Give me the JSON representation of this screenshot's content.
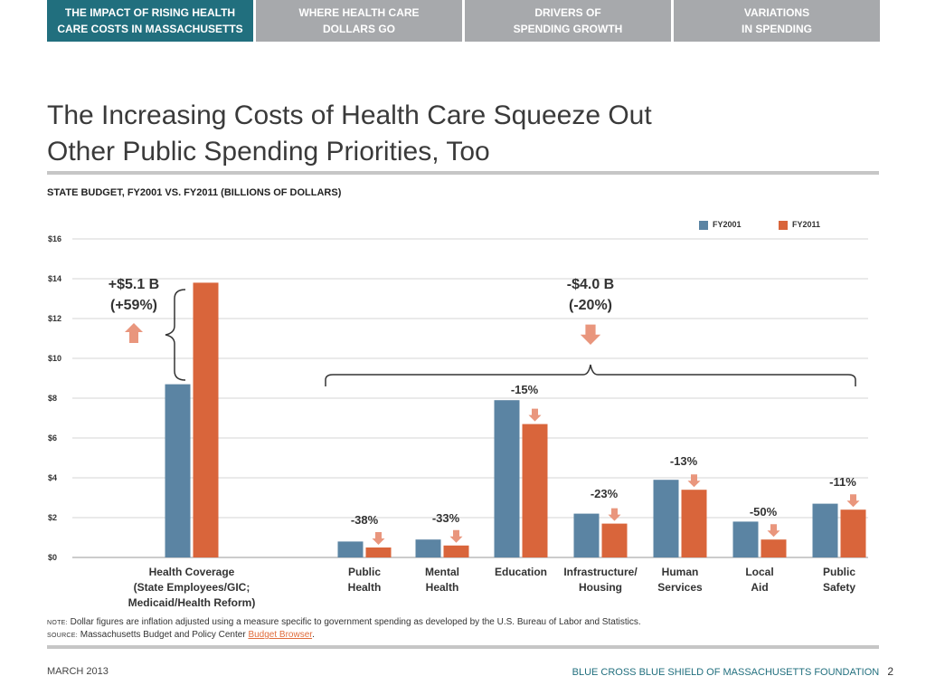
{
  "nav": {
    "tabs": [
      {
        "line1": "THE IMPACT OF RISING HEALTH",
        "line2": "CARE COSTS IN MASSACHUSETTS",
        "active": true
      },
      {
        "line1": "WHERE HEALTH CARE",
        "line2": "DOLLARS GO",
        "active": false
      },
      {
        "line1": "DRIVERS OF",
        "line2": "SPENDING GROWTH",
        "active": false
      },
      {
        "line1": "VARIATIONS",
        "line2": "IN SPENDING",
        "active": false
      }
    ]
  },
  "title": {
    "line1": "The Increasing Costs of Health Care Squeeze Out",
    "line2": "Other Public Spending Priorities, Too"
  },
  "chart_data": {
    "type": "bar",
    "title": "STATE BUDGET, FY2001 VS. FY2011 (BILLIONS OF DOLLARS)",
    "xlabel": "",
    "ylabel": "",
    "ylim": [
      0,
      16
    ],
    "yticks": [
      {
        "value": 0,
        "label": "$0"
      },
      {
        "value": 2,
        "label": "$2"
      },
      {
        "value": 4,
        "label": "$4"
      },
      {
        "value": 6,
        "label": "$6"
      },
      {
        "value": 8,
        "label": "$8"
      },
      {
        "value": 10,
        "label": "$10"
      },
      {
        "value": 12,
        "label": "$12"
      },
      {
        "value": 14,
        "label": "$14"
      },
      {
        "value": 16,
        "label": "$16"
      }
    ],
    "grid": true,
    "legend_position": "top-right",
    "categories": [
      {
        "lines": [
          "Health Coverage",
          "(State Employees/GIC;",
          "Medicaid/Health Reform)"
        ]
      },
      {
        "lines": [
          "Public",
          "Health"
        ]
      },
      {
        "lines": [
          "Mental",
          "Health"
        ]
      },
      {
        "lines": [
          "Education"
        ]
      },
      {
        "lines": [
          "Infrastructure/",
          "Housing"
        ]
      },
      {
        "lines": [
          "Human",
          "Services"
        ]
      },
      {
        "lines": [
          "Local",
          "Aid"
        ]
      },
      {
        "lines": [
          "Public",
          "Safety"
        ]
      }
    ],
    "series": [
      {
        "name": "FY2001",
        "color": "#5b84a3",
        "values": [
          8.7,
          0.8,
          0.9,
          7.9,
          2.2,
          3.9,
          1.8,
          2.7
        ]
      },
      {
        "name": "FY2011",
        "color": "#d9653b",
        "values": [
          13.8,
          0.5,
          0.6,
          6.7,
          1.7,
          3.4,
          0.9,
          2.4
        ]
      }
    ],
    "change_labels": [
      "",
      "-38%",
      "-33%",
      "-15%",
      "-23%",
      "-13%",
      "-50%",
      "-11%"
    ],
    "annotations": {
      "increase": {
        "line1": "+$5.1 B",
        "line2": "(+59%)"
      },
      "decrease": {
        "line1": "-$4.0 B",
        "line2": "(-20%)"
      }
    },
    "arrow_color": "#e9967d"
  },
  "notes": {
    "note_prefix": "NOTE:",
    "note_text": "Dollar figures are inflation adjusted using a measure specific to government spending as developed by the U.S. Bureau of Labor and Statistics.",
    "source_prefix": "SOURCE:",
    "source_text": "Massachusetts Budget and Policy Center",
    "source_link": "Budget Browser",
    "source_end": "."
  },
  "footer": {
    "date": "MARCH 2013",
    "org": "BLUE CROSS BLUE SHIELD OF MASSACHUSETTS FOUNDATION",
    "page": "2"
  }
}
